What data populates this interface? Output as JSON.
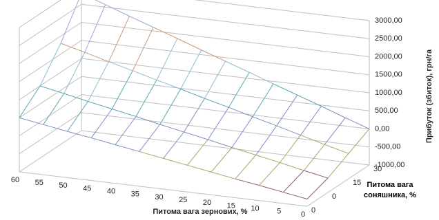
{
  "chart_data": {
    "type": "surface",
    "z_axis_title": "Прибуток (збиток), грн/га",
    "x_axis_title": "Питома вага зернових, %",
    "depth_axis_title": "Питома вага соняшника, %",
    "categories": [
      60,
      55,
      50,
      45,
      40,
      35,
      30,
      25,
      20,
      15,
      10,
      5,
      0
    ],
    "series": [
      {
        "name": "0",
        "values": [
          500,
          390,
          280,
          180,
          70,
          -40,
          -150,
          -260,
          -370,
          -480,
          -580,
          -690,
          -800
        ]
      },
      {
        "name": "0",
        "values": [
          1000,
          870,
          730,
          600,
          470,
          330,
          200,
          70,
          -70,
          -200,
          -330,
          -470,
          -600
        ]
      },
      {
        "name": "15",
        "values": [
          1800,
          1630,
          1450,
          1280,
          1100,
          930,
          750,
          580,
          400,
          230,
          50,
          -130,
          -300
        ]
      },
      {
        "name": "30",
        "values": [
          2800,
          2570,
          2330,
          2100,
          1870,
          1630,
          1400,
          1170,
          930,
          700,
          470,
          230,
          0
        ]
      }
    ],
    "zlim": [
      -1000,
      3000
    ],
    "zticks": [
      {
        "value": 3000,
        "label": "3000,00"
      },
      {
        "value": 2500,
        "label": "2500,00"
      },
      {
        "value": 2000,
        "label": "2000,00"
      },
      {
        "value": 1500,
        "label": "1500,00"
      },
      {
        "value": 1000,
        "label": "1000,00"
      },
      {
        "value": 500,
        "label": "500,00"
      },
      {
        "value": 0,
        "label": "0,00"
      },
      {
        "value": -500,
        "label": "-500,00"
      },
      {
        "value": -1000,
        "label": "-1000,00"
      }
    ],
    "band_colors": [
      "#8e5b7a",
      "#a9a86a",
      "#7b8fc4",
      "#5aa6b5",
      "#8dbbd1",
      "#c99a7c",
      "#9aa8d8",
      "#b9a0c9"
    ],
    "grid": true
  }
}
